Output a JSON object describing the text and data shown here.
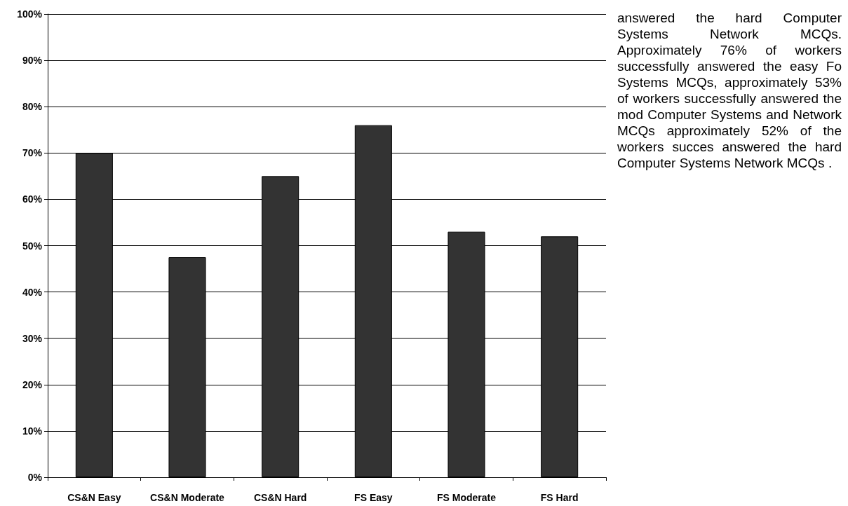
{
  "chart_data": {
    "type": "bar",
    "categories": [
      "CS&N Easy",
      "CS&N Moderate",
      "CS&N Hard",
      "FS Easy",
      "FS Moderate",
      "FS Hard"
    ],
    "values": [
      70,
      47.5,
      65,
      76,
      53,
      52
    ],
    "color": "#333333",
    "ylim": [
      0,
      100
    ],
    "yticks": [
      {
        "value": 0,
        "label": "0%"
      },
      {
        "value": 10,
        "label": "10%"
      },
      {
        "value": 20,
        "label": "20%"
      },
      {
        "value": 30,
        "label": "30%"
      },
      {
        "value": 40,
        "label": "40%"
      },
      {
        "value": 50,
        "label": "50%"
      },
      {
        "value": 60,
        "label": "60%"
      },
      {
        "value": 70,
        "label": "70%"
      },
      {
        "value": 80,
        "label": "80%"
      },
      {
        "value": 90,
        "label": "90%"
      },
      {
        "value": 100,
        "label": "100%"
      }
    ],
    "grid": "y",
    "annotations": [
      "answered the hard Computer Systems Network MCQs. Approximately 76% of workers successfully answered the easy Fo Systems MCQs, approximately 53% of workers successfully answered the mod Computer Systems and Network MCQs approximately 52% of the workers succes answered the hard Computer Systems Network MCQs ."
    ]
  }
}
